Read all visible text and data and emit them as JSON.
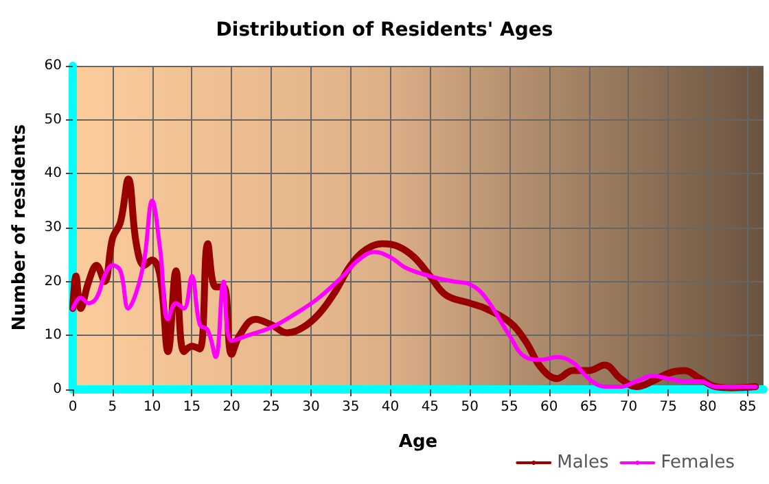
{
  "chart_data": {
    "type": "line",
    "title": "Distribution of Residents' Ages",
    "xlabel": "Age",
    "ylabel": "Number of residents",
    "xlim": [
      0,
      87
    ],
    "xticks": [
      0,
      5,
      10,
      15,
      20,
      25,
      30,
      35,
      40,
      45,
      50,
      55,
      60,
      65,
      70,
      75,
      80,
      85
    ],
    "ylim": [
      0,
      60
    ],
    "yticks": [
      0,
      10,
      20,
      30,
      40,
      50,
      60
    ],
    "grid": true,
    "legend": "bottom right",
    "marker": "none",
    "line_style": "solid",
    "series": [
      {
        "name": "Males",
        "color": "#990000",
        "x": [
          0,
          0.4,
          1,
          2,
          3,
          4,
          5,
          6,
          7,
          8,
          9,
          10,
          11,
          12,
          13,
          14,
          15,
          16,
          17,
          18,
          19,
          20,
          21,
          23,
          25,
          27,
          29,
          31,
          33,
          35,
          37,
          39,
          41,
          43,
          45,
          47,
          50,
          52,
          55,
          57,
          59,
          61,
          63,
          65,
          67,
          69,
          71,
          73,
          75,
          77,
          79,
          81,
          83,
          86
        ],
        "values": [
          15,
          21,
          15,
          20,
          23,
          20,
          28,
          31,
          39,
          27,
          23,
          24,
          21,
          7,
          22,
          7,
          8,
          7.5,
          27,
          19,
          19,
          6.5,
          10,
          13,
          12,
          10.5,
          11.5,
          14,
          18,
          23,
          26,
          27,
          26.5,
          24.5,
          21,
          17.5,
          16,
          15,
          12.5,
          9,
          4,
          2,
          3.5,
          3.5,
          4.5,
          2,
          0.5,
          1.5,
          3,
          3.5,
          2,
          0.5,
          0.3,
          0.5
        ]
      },
      {
        "name": "Females",
        "color": "#ff00ff",
        "x": [
          0,
          1,
          2,
          3,
          4,
          5,
          6,
          7,
          8,
          9,
          10,
          11,
          12,
          13,
          14,
          15,
          16,
          17,
          18,
          19,
          20,
          22,
          25,
          28,
          31,
          34,
          36,
          38,
          40,
          42,
          45,
          48,
          50,
          52,
          55,
          57,
          59,
          61,
          63,
          65,
          67,
          69,
          71,
          73,
          75,
          77,
          79,
          81,
          83,
          86
        ],
        "values": [
          15,
          17,
          16,
          17,
          21,
          23,
          22,
          15,
          18,
          24,
          35,
          26,
          13,
          16,
          15,
          21,
          12,
          11,
          6,
          20,
          9,
          10,
          11.5,
          14,
          17,
          21,
          24,
          25.5,
          24.5,
          22.5,
          21,
          20,
          19.5,
          17,
          10,
          6,
          5.5,
          6,
          5,
          2,
          0.5,
          0.5,
          1.5,
          2.5,
          2,
          1.5,
          1.5,
          0.5,
          0.5,
          0.5
        ]
      }
    ]
  }
}
